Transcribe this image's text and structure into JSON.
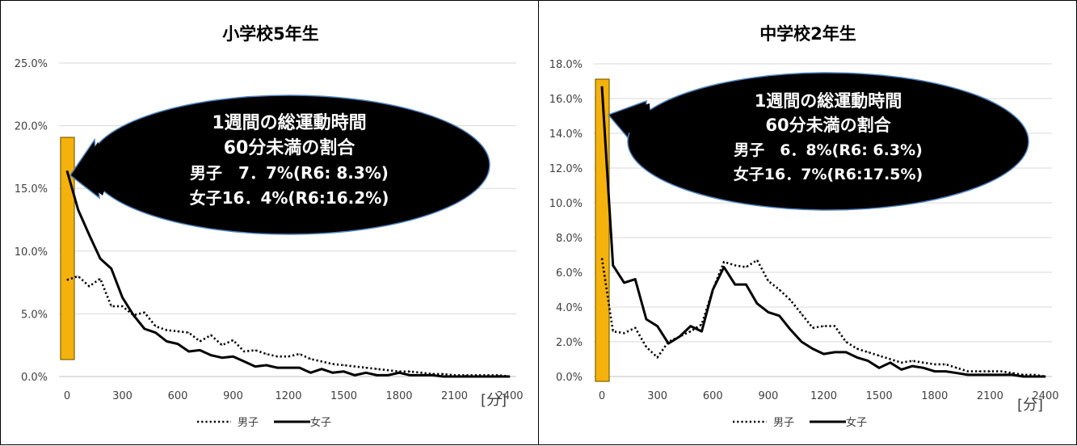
{
  "chart_data": [
    {
      "type": "line",
      "title": "小学校5年生",
      "unit_label": "[分]",
      "x_ticks": [
        "0",
        "300",
        "600",
        "900",
        "1200",
        "1500",
        "1800",
        "2100",
        "2400"
      ],
      "y_ticks": [
        "0.0%",
        "5.0%",
        "10.0%",
        "15.0%",
        "20.0%",
        "25.0%"
      ],
      "xlim": [
        0,
        2400
      ],
      "ylim": [
        0,
        25
      ],
      "grid": "horizontal",
      "legend_position": "bottom",
      "highlight_range": [
        0,
        60
      ],
      "highlight_color": "#F5B20C",
      "series": [
        {
          "name": "男子",
          "style": "dotted",
          "x": [
            0,
            60,
            120,
            180,
            240,
            300,
            360,
            420,
            480,
            540,
            600,
            660,
            720,
            780,
            840,
            900,
            960,
            1020,
            1080,
            1140,
            1200,
            1260,
            1320,
            1380,
            1440,
            1500,
            1560,
            1620,
            1680,
            1740,
            1800,
            1860,
            1920,
            1980,
            2040,
            2100,
            2160,
            2220,
            2280,
            2340,
            2400
          ],
          "y": [
            7.7,
            8.0,
            7.2,
            7.8,
            5.6,
            5.6,
            4.9,
            5.1,
            4.0,
            3.7,
            3.6,
            3.5,
            2.8,
            3.3,
            2.5,
            2.9,
            2.0,
            2.1,
            1.8,
            1.6,
            1.6,
            1.8,
            1.4,
            1.2,
            1.0,
            0.9,
            0.8,
            0.7,
            0.6,
            0.5,
            0.4,
            0.4,
            0.3,
            0.2,
            0.2,
            0.1,
            0.1,
            0.1,
            0.1,
            0.1,
            0.0
          ]
        },
        {
          "name": "女子",
          "style": "solid",
          "x": [
            0,
            60,
            120,
            180,
            240,
            300,
            360,
            420,
            480,
            540,
            600,
            660,
            720,
            780,
            840,
            900,
            960,
            1020,
            1080,
            1140,
            1200,
            1260,
            1320,
            1380,
            1440,
            1500,
            1560,
            1620,
            1680,
            1740,
            1800,
            1860,
            1920,
            1980,
            2040,
            2100,
            2160,
            2220,
            2280,
            2340,
            2400
          ],
          "y": [
            16.4,
            13.3,
            11.3,
            9.4,
            8.6,
            6.3,
            4.9,
            3.8,
            3.5,
            2.8,
            2.6,
            2.0,
            2.1,
            1.7,
            1.5,
            1.6,
            1.2,
            0.8,
            0.9,
            0.7,
            0.7,
            0.7,
            0.3,
            0.6,
            0.3,
            0.4,
            0.1,
            0.3,
            0.1,
            0.1,
            0.3,
            0.1,
            0.1,
            0.1,
            0.0,
            0.0,
            0.0,
            0.0,
            0.0,
            0.0,
            0.0
          ]
        }
      ],
      "bubble": {
        "line1": "1週間の総運動時間",
        "line2": "60分未満の割合",
        "line3": "男子　7．7%(R6: 8.3%)",
        "line4": "女子16．4%(R6:16.2%)",
        "fill": "#000000",
        "stroke": "#4F81BD"
      }
    },
    {
      "type": "line",
      "title": "中学校2年生",
      "unit_label": "[分]",
      "x_ticks": [
        "0",
        "300",
        "600",
        "900",
        "1200",
        "1500",
        "1800",
        "2100",
        "2400"
      ],
      "y_ticks": [
        "0.0%",
        "2.0%",
        "4.0%",
        "6.0%",
        "8.0%",
        "10.0%",
        "12.0%",
        "14.0%",
        "16.0%",
        "18.0%"
      ],
      "xlim": [
        0,
        2400
      ],
      "ylim": [
        0,
        18
      ],
      "grid": "horizontal",
      "legend_position": "bottom",
      "highlight_range": [
        0,
        60
      ],
      "highlight_color": "#F5B20C",
      "series": [
        {
          "name": "男子",
          "style": "dotted",
          "x": [
            0,
            60,
            120,
            180,
            240,
            300,
            360,
            420,
            480,
            540,
            600,
            660,
            720,
            780,
            840,
            900,
            960,
            1020,
            1080,
            1140,
            1200,
            1260,
            1320,
            1380,
            1440,
            1500,
            1560,
            1620,
            1680,
            1740,
            1800,
            1860,
            1920,
            1980,
            2040,
            2100,
            2160,
            2220,
            2280,
            2340,
            2400
          ],
          "y": [
            6.8,
            2.6,
            2.5,
            2.8,
            1.7,
            1.1,
            2.0,
            2.3,
            2.6,
            3.0,
            5.0,
            6.6,
            6.4,
            6.3,
            6.7,
            5.5,
            5.0,
            4.4,
            3.6,
            2.8,
            2.9,
            2.9,
            2.0,
            1.6,
            1.4,
            1.2,
            1.0,
            0.8,
            0.9,
            0.8,
            0.7,
            0.7,
            0.5,
            0.3,
            0.3,
            0.3,
            0.3,
            0.2,
            0.1,
            0.1,
            0.0
          ]
        },
        {
          "name": "女子",
          "style": "solid",
          "x": [
            0,
            60,
            120,
            180,
            240,
            300,
            360,
            420,
            480,
            540,
            600,
            660,
            720,
            780,
            840,
            900,
            960,
            1020,
            1080,
            1140,
            1200,
            1260,
            1320,
            1380,
            1440,
            1500,
            1560,
            1620,
            1680,
            1740,
            1800,
            1860,
            1920,
            1980,
            2040,
            2100,
            2160,
            2220,
            2280,
            2340,
            2400
          ],
          "y": [
            16.7,
            6.4,
            5.4,
            5.6,
            3.3,
            2.9,
            1.9,
            2.3,
            2.9,
            2.6,
            5.0,
            6.3,
            5.3,
            5.3,
            4.2,
            3.7,
            3.5,
            2.7,
            2.0,
            1.6,
            1.3,
            1.4,
            1.4,
            1.1,
            0.9,
            0.5,
            0.8,
            0.4,
            0.6,
            0.5,
            0.3,
            0.3,
            0.2,
            0.1,
            0.1,
            0.1,
            0.1,
            0.1,
            0.0,
            0.0,
            0.0
          ]
        }
      ],
      "bubble": {
        "line1": "1週間の総運動時間",
        "line2": "60分未満の割合",
        "line3": "男子　6．8%(R6: 6.3%)",
        "line4": "女子16．7%(R6:17.5%)",
        "fill": "#000000",
        "stroke": "#4F81BD"
      }
    }
  ]
}
